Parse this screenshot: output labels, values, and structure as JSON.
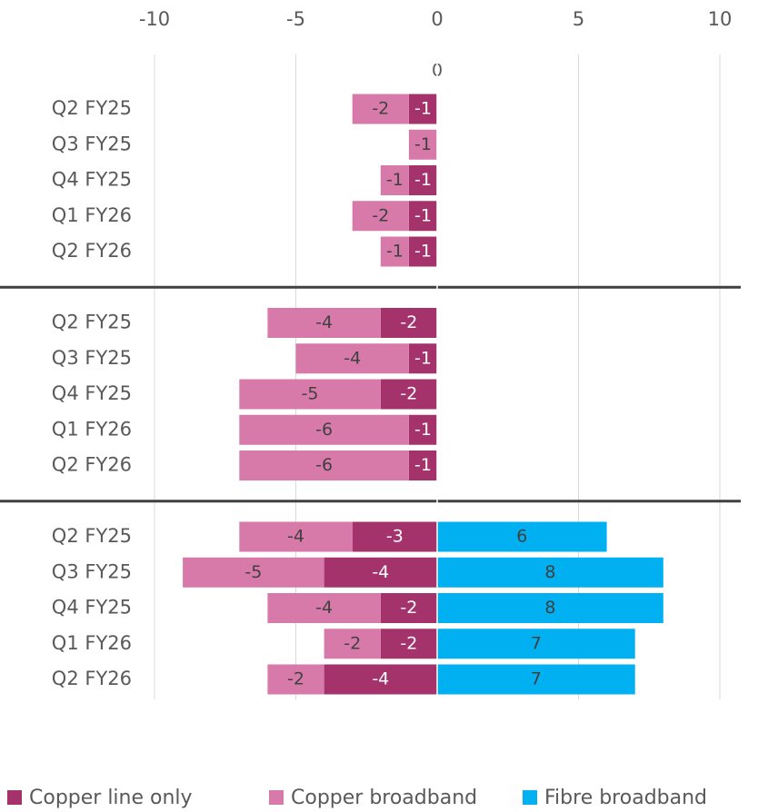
{
  "chart_data": {
    "type": "bar",
    "orientation": "horizontal",
    "stacked": true,
    "categories": [
      "Q2 FY25",
      "Q3 FY25",
      "Q4 FY25",
      "Q1 FY26",
      "Q2 FY26",
      "Q2 FY25",
      "Q3 FY25",
      "Q4 FY25",
      "Q1 FY26",
      "Q2 FY26",
      "Q2 FY25",
      "Q3 FY25",
      "Q4 FY25",
      "Q1 FY26",
      "Q2 FY26"
    ],
    "series": [
      {
        "name": "Copper line only",
        "color": "#a5336b",
        "values": [
          -1,
          0,
          -1,
          -1,
          -1,
          -2,
          -1,
          -2,
          -1,
          -1,
          -3,
          -4,
          -2,
          -2,
          -4
        ]
      },
      {
        "name": "Copper broadband",
        "color": "#d87aa9",
        "values": [
          -2,
          -1,
          -1,
          -2,
          -1,
          -4,
          -4,
          -5,
          -6,
          -6,
          -4,
          -5,
          -4,
          -2,
          -2
        ]
      },
      {
        "name": "Fibre broadband",
        "color": "#00b0f0",
        "values": [
          null,
          null,
          null,
          null,
          null,
          null,
          null,
          null,
          null,
          null,
          6,
          8,
          8,
          7,
          7
        ]
      }
    ],
    "annotation": "0",
    "xlim": [
      -10,
      10
    ],
    "xticks": [
      -10,
      -5,
      0,
      5,
      10
    ],
    "grid": true,
    "legend": "bottom"
  }
}
